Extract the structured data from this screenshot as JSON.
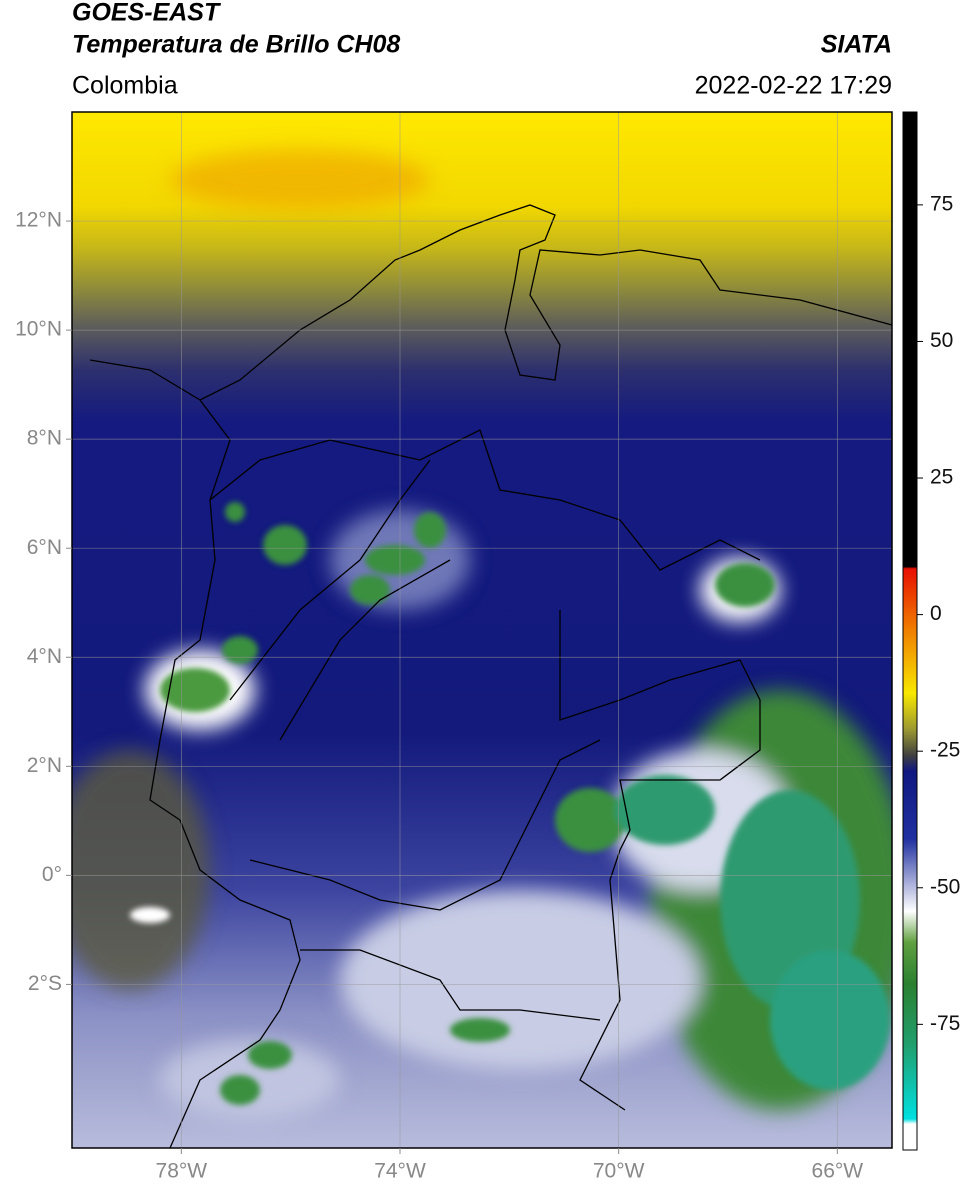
{
  "header": {
    "title": "GOES-EAST",
    "subtitle": "Temperatura de Brillo CH08",
    "region": "Colombia",
    "source": "SIATA",
    "datetime": "2022-02-22 17:29"
  },
  "map": {
    "xlim": [
      -80,
      -65
    ],
    "ylim": [
      -5,
      14
    ],
    "xticks": [
      {
        "value": -78,
        "label": "78°W"
      },
      {
        "value": -74,
        "label": "74°W"
      },
      {
        "value": -70,
        "label": "70°W"
      },
      {
        "value": -66,
        "label": "66°W"
      }
    ],
    "yticks": [
      {
        "value": 12,
        "label": "12°N"
      },
      {
        "value": 10,
        "label": "10°N"
      },
      {
        "value": 8,
        "label": "8°N"
      },
      {
        "value": 6,
        "label": "6°N"
      },
      {
        "value": 4,
        "label": "4°N"
      },
      {
        "value": 2,
        "label": "2°N"
      },
      {
        "value": 0,
        "label": "0°"
      },
      {
        "value": -2,
        "label": "2°S"
      }
    ],
    "grid": true
  },
  "colorbar": {
    "clim": [
      -98,
      92
    ],
    "ticks": [
      75,
      50,
      25,
      0,
      -25,
      -50,
      -75
    ]
  }
}
